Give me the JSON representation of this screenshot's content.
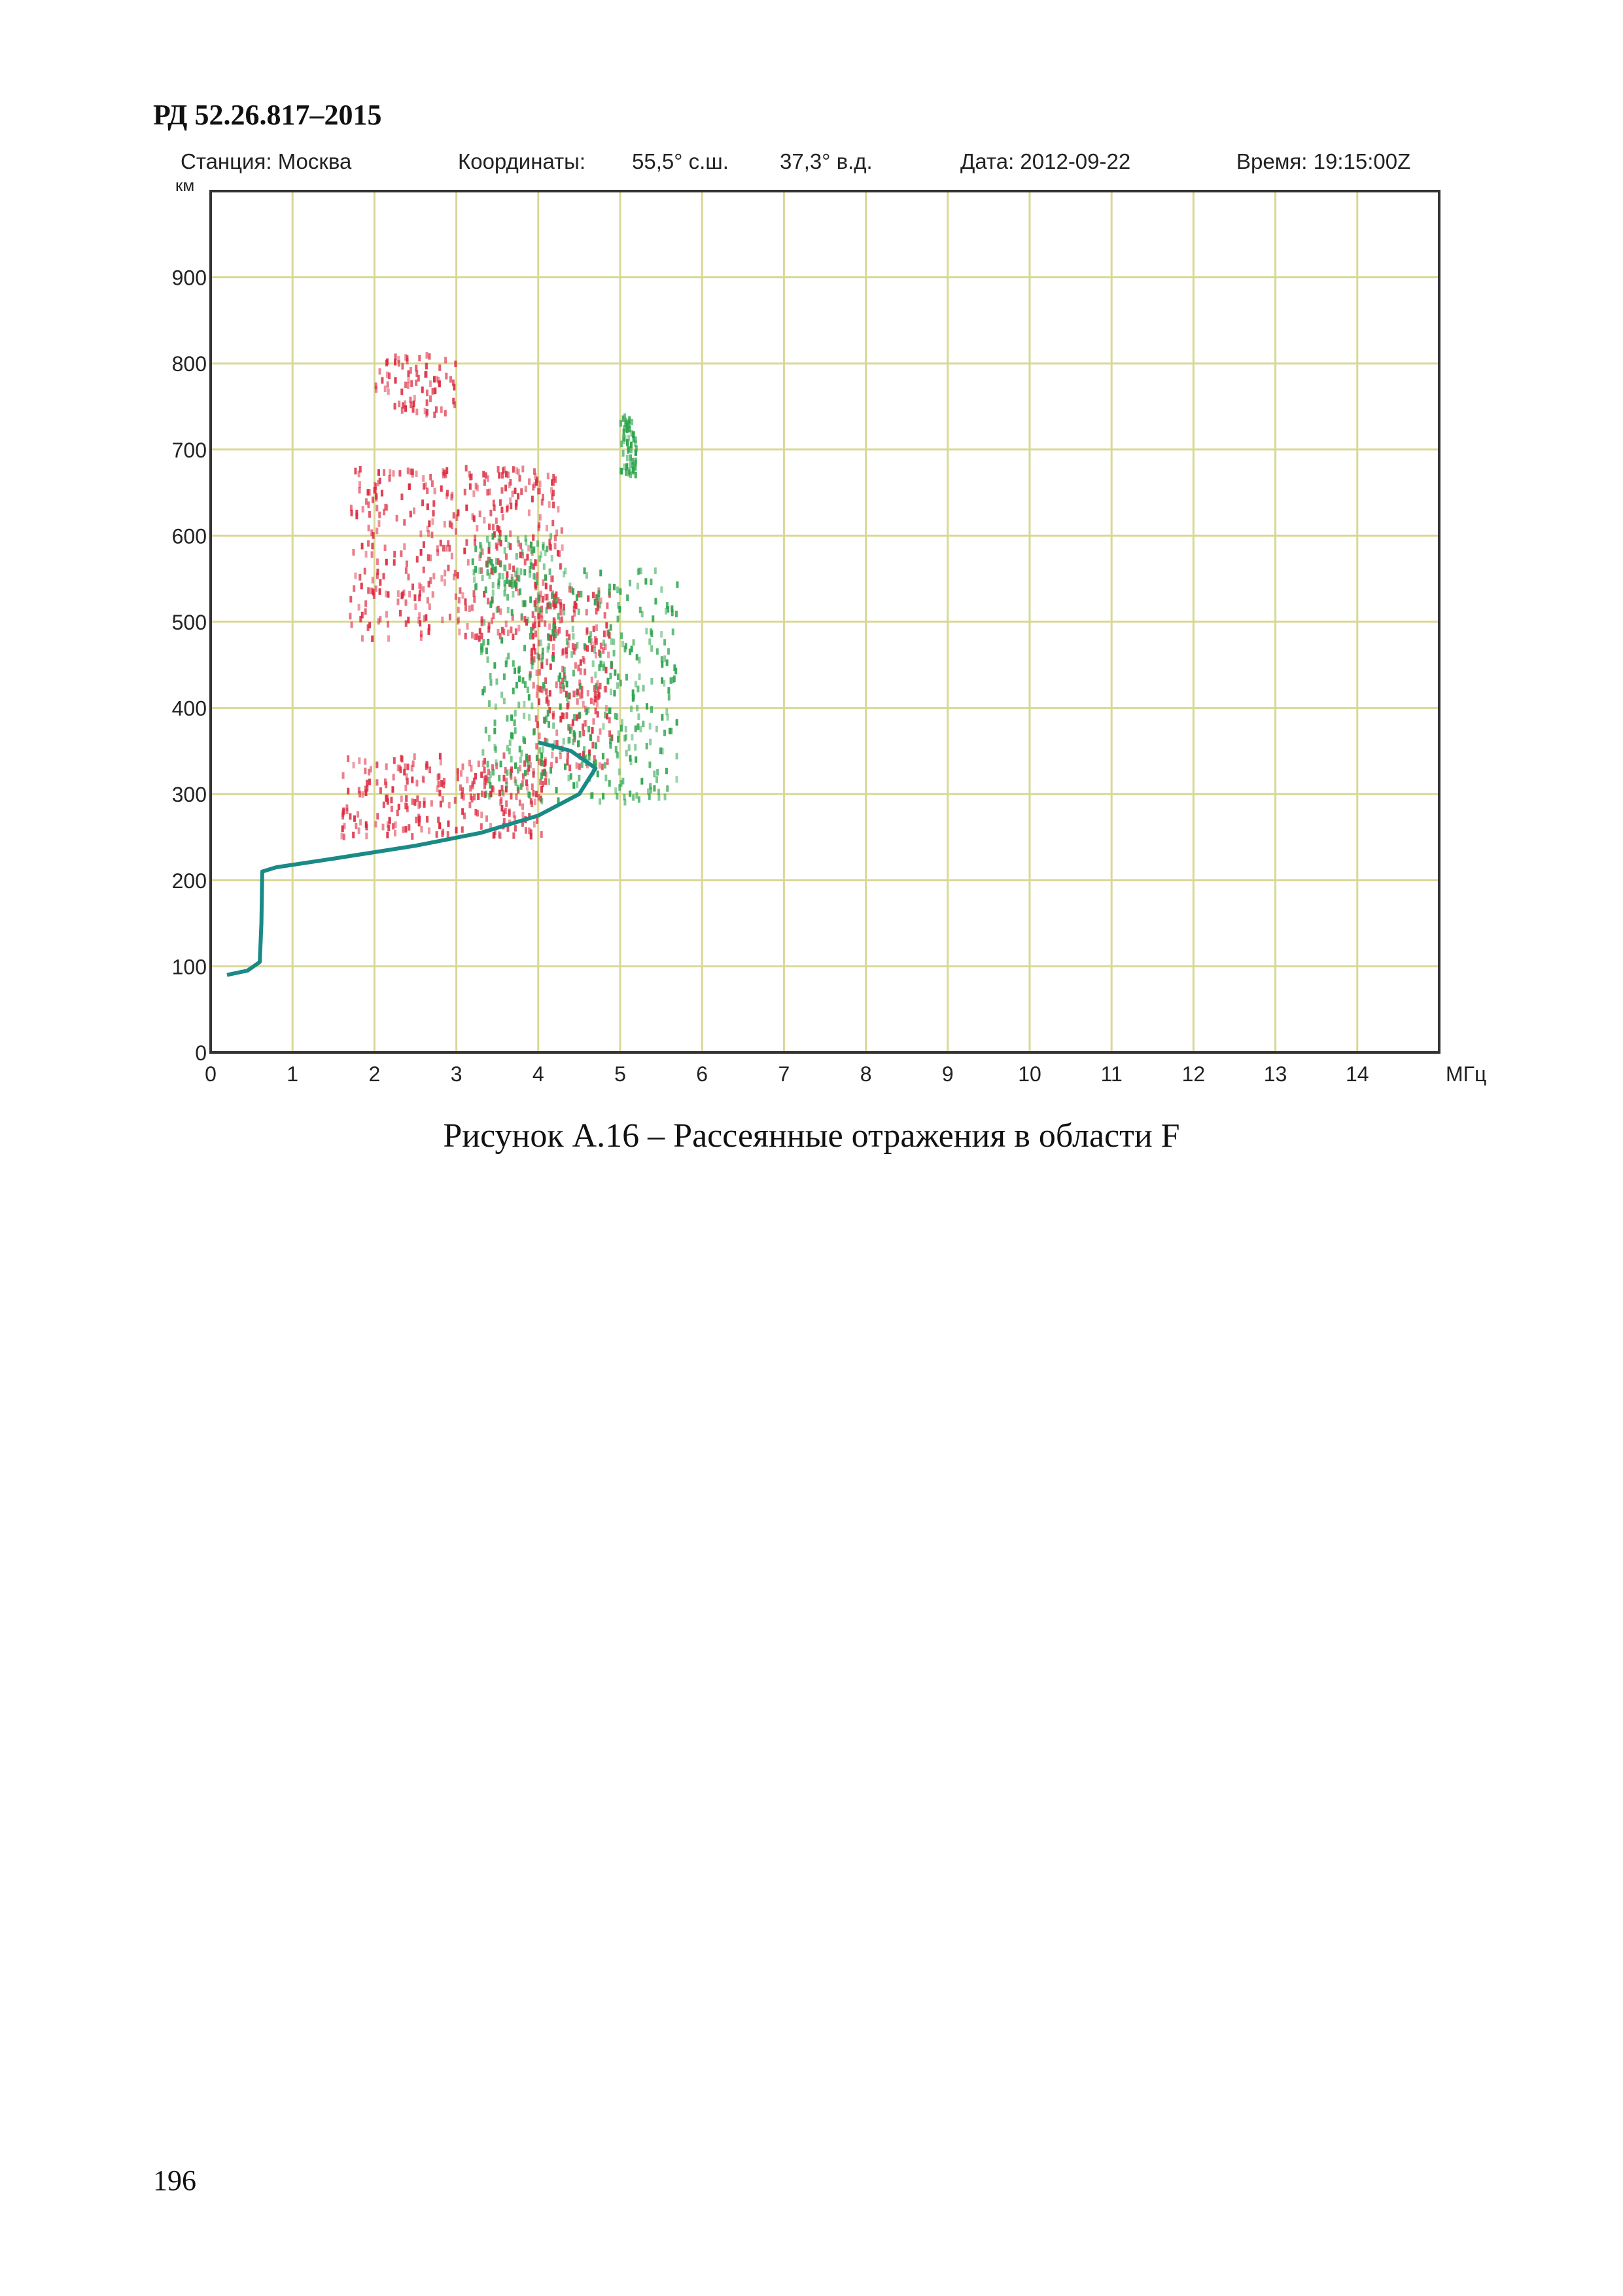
{
  "header": {
    "doc_id": "РД 52.26.817–2015"
  },
  "plot_info": {
    "station": "Станция: Москва",
    "coordinates": "Координаты:",
    "lat": "55,5° с.ш.",
    "lon": "37,3° в.д.",
    "date": "Дата: 2012-09-22",
    "time": "Время: 19:15:00Z"
  },
  "chart_data": {
    "type": "scatter",
    "x_unit_label": "МГц",
    "y_unit_label": "км",
    "xlim": [
      0,
      15
    ],
    "ylim": [
      0,
      1000
    ],
    "x_ticks": [
      0,
      1,
      2,
      3,
      4,
      5,
      6,
      7,
      8,
      9,
      10,
      11,
      12,
      13,
      14
    ],
    "y_ticks": [
      0,
      100,
      200,
      300,
      400,
      500,
      600,
      700,
      800,
      900
    ],
    "grid": true,
    "colors": {
      "o_mode": "#dc2b3f",
      "x_mode": "#2aa34a",
      "trace": "#1a8a86",
      "grid": "#d8d896",
      "frame": "#333333"
    },
    "series": [
      {
        "color_role": "o_mode",
        "clusters": [
          {
            "x0": 1.6,
            "x1": 4.1,
            "y0": 250,
            "y1": 345
          },
          {
            "x0": 3.9,
            "x1": 4.9,
            "y0": 330,
            "y1": 540
          },
          {
            "x0": 1.7,
            "x1": 4.3,
            "y0": 480,
            "y1": 680
          },
          {
            "x0": 2.0,
            "x1": 3.0,
            "y0": 740,
            "y1": 810
          }
        ]
      },
      {
        "color_role": "x_mode",
        "clusters": [
          {
            "x0": 3.3,
            "x1": 5.7,
            "y0": 290,
            "y1": 560
          },
          {
            "x0": 3.2,
            "x1": 4.2,
            "y0": 540,
            "y1": 600
          },
          {
            "x0": 5.0,
            "x1": 5.2,
            "y0": 670,
            "y1": 740
          }
        ]
      }
    ],
    "trace": [
      [
        0.2,
        90
      ],
      [
        0.45,
        95
      ],
      [
        0.6,
        105
      ],
      [
        0.62,
        150
      ],
      [
        0.63,
        210
      ],
      [
        0.8,
        215
      ],
      [
        1.5,
        225
      ],
      [
        2.5,
        240
      ],
      [
        3.3,
        255
      ],
      [
        4.0,
        275
      ],
      [
        4.5,
        300
      ],
      [
        4.7,
        330
      ],
      [
        4.4,
        350
      ],
      [
        4.0,
        360
      ]
    ]
  },
  "caption": "Рисунок А.16 – Рассеянные отражения в области F",
  "page_number": "196"
}
